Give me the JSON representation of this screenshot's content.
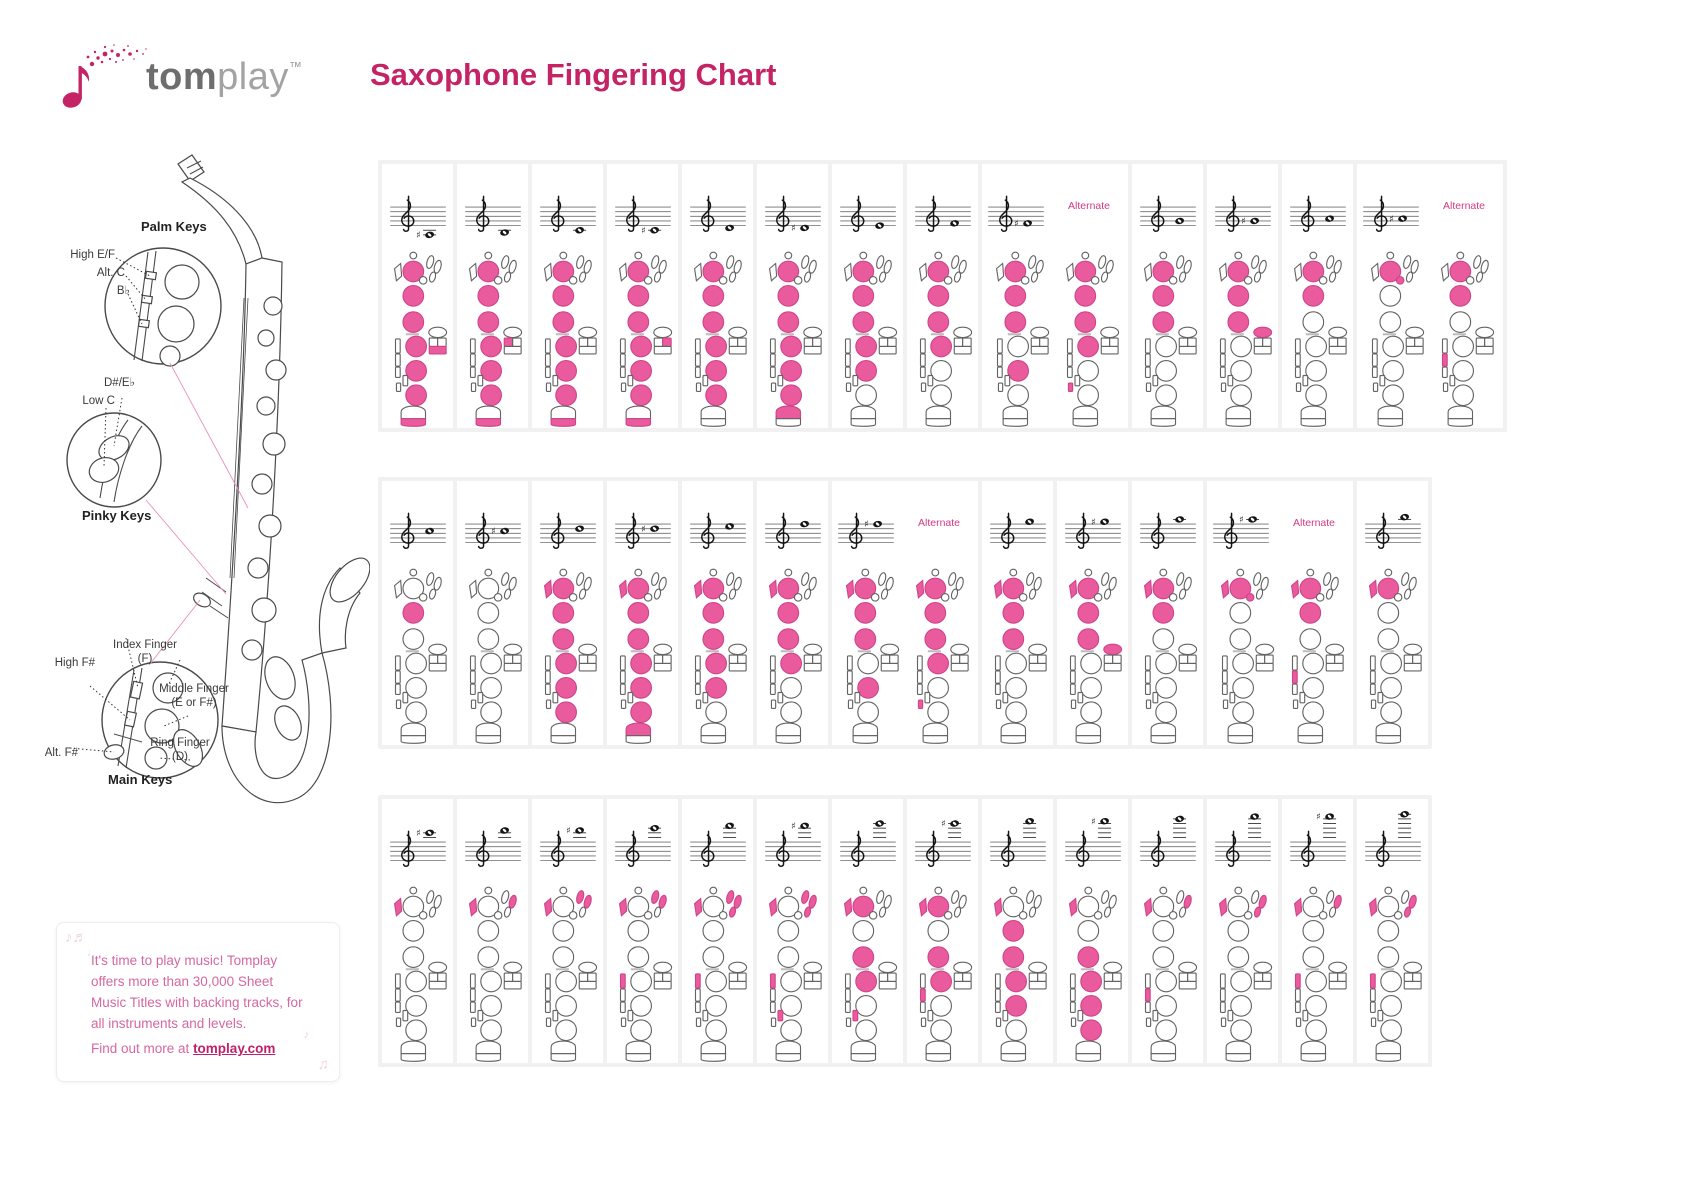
{
  "header": {
    "logo_bold": "tom",
    "logo_light": "play",
    "trademark": "™",
    "title": "Saxophone Fingering Chart"
  },
  "sax_diagram": {
    "labels": {
      "palm_keys": "Palm Keys",
      "high_ef": "High E/F",
      "alt_c": "Alt. C",
      "bb": "B♭",
      "ds_eb": "D#/E♭",
      "low_c": "Low C",
      "pinky_keys": "Pinky Keys",
      "index_finger": "Index Finger (F)",
      "middle_finger": "Middle Finger (E or F#)",
      "high_fs": "High F#",
      "alt_fs": "Alt. F#",
      "ring_finger": "Ring Finger (D)",
      "main_keys": "Main Keys"
    }
  },
  "promo": {
    "text": "It's time to play music! Tomplay offers more than 30,000 Sheet Music Titles with backing tracks, for all instruments and levels.",
    "more_prefix": "Find out more at ",
    "link": "tomplay.com"
  },
  "alternate_label": "Alternate",
  "colors": {
    "title_pink": "#c42366",
    "key_pink": "#ea5b9e",
    "key_pink_stroke": "#cf4489",
    "alt_label_pink": "#d23a82"
  },
  "chart": {
    "legend_keys": [
      "octave-key",
      "front-f",
      "left-hand-1",
      "left-hand-2",
      "left-hand-3",
      "bis",
      "palm-1",
      "palm-2",
      "palm-3",
      "g-sharp",
      "low-b",
      "low-c-sharp",
      "low-bb",
      "side-1",
      "side-2",
      "side-3",
      "right-hand-1",
      "right-hand-2",
      "right-hand-3",
      "high-f-sharp",
      "alt-f-sharp",
      "eb-pinky",
      "low-c-pinky"
    ],
    "rows": [
      {
        "cells": [
          {
            "note": "A#3/Bb3",
            "sharp": true,
            "step": -4,
            "keys": [
              "L1",
              "L2",
              "L3",
              "R1",
              "R2",
              "R3",
              "lc",
              "lbb"
            ]
          },
          {
            "note": "B3",
            "sharp": false,
            "step": -3,
            "keys": [
              "L1",
              "L2",
              "L3",
              "R1",
              "R2",
              "R3",
              "lc",
              "lb"
            ]
          },
          {
            "note": "C4",
            "sharp": false,
            "step": -2,
            "keys": [
              "L1",
              "L2",
              "L3",
              "R1",
              "R2",
              "R3",
              "lc"
            ]
          },
          {
            "note": "C#4/Db4",
            "sharp": true,
            "step": -2,
            "keys": [
              "L1",
              "L2",
              "L3",
              "R1",
              "R2",
              "R3",
              "lc",
              "lcs"
            ]
          },
          {
            "note": "D4",
            "sharp": false,
            "step": -1,
            "keys": [
              "L1",
              "L2",
              "L3",
              "R1",
              "R2",
              "R3"
            ]
          },
          {
            "note": "D#4/Eb4",
            "sharp": true,
            "step": -1,
            "keys": [
              "L1",
              "L2",
              "L3",
              "R1",
              "R2",
              "R3",
              "eb"
            ]
          },
          {
            "note": "E4",
            "sharp": false,
            "step": 0,
            "keys": [
              "L1",
              "L2",
              "L3",
              "R1",
              "R2"
            ]
          },
          {
            "note": "F4",
            "sharp": false,
            "step": 1,
            "keys": [
              "L1",
              "L2",
              "L3",
              "R1"
            ]
          },
          {
            "note": "F#4/Gb4",
            "sharp": true,
            "step": 1,
            "alternate": true,
            "keys": [
              "L1",
              "L2",
              "L3",
              "R2"
            ],
            "keys_alt": [
              "L1",
              "L2",
              "L3",
              "R1",
              "x2"
            ]
          },
          {
            "note": "G4",
            "sharp": false,
            "step": 2,
            "keys": [
              "L1",
              "L2",
              "L3"
            ]
          },
          {
            "note": "G#4/Ab4",
            "sharp": true,
            "step": 2,
            "keys": [
              "L1",
              "L2",
              "L3",
              "gs"
            ]
          },
          {
            "note": "A4",
            "sharp": false,
            "step": 3,
            "keys": [
              "L1",
              "L2"
            ]
          },
          {
            "note": "A#4/Bb4",
            "sharp": true,
            "step": 3,
            "alternate": true,
            "keys": [
              "L1",
              "bis"
            ],
            "keys_alt": [
              "L1",
              "L2",
              "sk2"
            ]
          }
        ]
      },
      {
        "cells": [
          {
            "note": "C5",
            "sharp": false,
            "step": 5,
            "keys": [
              "L2"
            ]
          },
          {
            "note": "C#5/Db5",
            "sharp": true,
            "step": 5,
            "keys": []
          },
          {
            "note": "D5",
            "sharp": false,
            "step": 6,
            "keys": [
              "oct",
              "L1",
              "L2",
              "L3",
              "R1",
              "R2",
              "R3"
            ]
          },
          {
            "note": "D#5/Eb5",
            "sharp": true,
            "step": 6,
            "keys": [
              "oct",
              "L1",
              "L2",
              "L3",
              "R1",
              "R2",
              "R3",
              "eb"
            ]
          },
          {
            "note": "E5",
            "sharp": false,
            "step": 7,
            "keys": [
              "oct",
              "L1",
              "L2",
              "L3",
              "R1",
              "R2"
            ]
          },
          {
            "note": "F5",
            "sharp": false,
            "step": 8,
            "keys": [
              "oct",
              "L1",
              "L2",
              "L3",
              "R1"
            ]
          },
          {
            "note": "F#5/Gb5",
            "sharp": true,
            "step": 8,
            "alternate": true,
            "keys": [
              "oct",
              "L1",
              "L2",
              "L3",
              "R2"
            ],
            "keys_alt": [
              "oct",
              "L1",
              "L2",
              "L3",
              "R1",
              "x2"
            ]
          },
          {
            "note": "G5",
            "sharp": false,
            "step": 9,
            "keys": [
              "oct",
              "L1",
              "L2",
              "L3"
            ]
          },
          {
            "note": "G#5/Ab5",
            "sharp": true,
            "step": 9,
            "keys": [
              "oct",
              "L1",
              "L2",
              "L3",
              "gs"
            ]
          },
          {
            "note": "A5",
            "sharp": false,
            "step": 10,
            "keys": [
              "oct",
              "L1",
              "L2"
            ]
          },
          {
            "note": "A#5/Bb5",
            "sharp": true,
            "step": 10,
            "alternate": true,
            "keys": [
              "oct",
              "L1",
              "bis"
            ],
            "keys_alt": [
              "oct",
              "L1",
              "L2",
              "sk2"
            ]
          },
          {
            "note": "B5",
            "sharp": false,
            "step": 11,
            "keys": [
              "oct",
              "L1"
            ]
          }
        ]
      },
      {
        "cells": [
          {
            "note": "C#6/Db6",
            "sharp": true,
            "step": 12,
            "keys": [
              "oct"
            ]
          },
          {
            "note": "D6",
            "sharp": false,
            "step": 13,
            "keys": [
              "oct",
              "pB"
            ]
          },
          {
            "note": "D#6/Eb6",
            "sharp": true,
            "step": 13,
            "keys": [
              "oct",
              "pA",
              "pB"
            ]
          },
          {
            "note": "E6",
            "sharp": false,
            "step": 14,
            "keys": [
              "oct",
              "pA",
              "pB",
              "sk1"
            ]
          },
          {
            "note": "F6",
            "sharp": false,
            "step": 15,
            "keys": [
              "oct",
              "pA",
              "pB",
              "pC",
              "sk1"
            ]
          },
          {
            "note": "F#6/Gb6",
            "sharp": true,
            "step": 15,
            "keys": [
              "oct",
              "pA",
              "pB",
              "pC",
              "sk1",
              "x1"
            ]
          },
          {
            "note": "G6",
            "sharp": false,
            "step": 16,
            "keys": [
              "oct",
              "L1",
              "L3",
              "R1",
              "x1"
            ]
          },
          {
            "note": "G#6/Ab6",
            "sharp": true,
            "step": 16,
            "keys": [
              "oct",
              "L1",
              "L3",
              "R1",
              "sk2"
            ]
          },
          {
            "note": "A6",
            "sharp": false,
            "step": 17,
            "keys": [
              "oct",
              "L2",
              "L3",
              "R1",
              "R2"
            ]
          },
          {
            "note": "A#6/Bb6",
            "sharp": true,
            "step": 17,
            "keys": [
              "oct",
              "L3",
              "R1",
              "R2",
              "R3"
            ]
          },
          {
            "note": "B6",
            "sharp": false,
            "step": 18,
            "keys": [
              "oct",
              "pB",
              "sk2"
            ]
          },
          {
            "note": "C7",
            "sharp": false,
            "step": 19,
            "keys": [
              "oct",
              "pB",
              "pC"
            ]
          },
          {
            "note": "C#7/Db7",
            "sharp": true,
            "step": 19,
            "keys": [
              "oct",
              "pB",
              "sk1"
            ]
          },
          {
            "note": "D7",
            "sharp": false,
            "step": 20,
            "keys": [
              "oct",
              "pB",
              "pC",
              "sk1"
            ]
          }
        ]
      }
    ]
  }
}
